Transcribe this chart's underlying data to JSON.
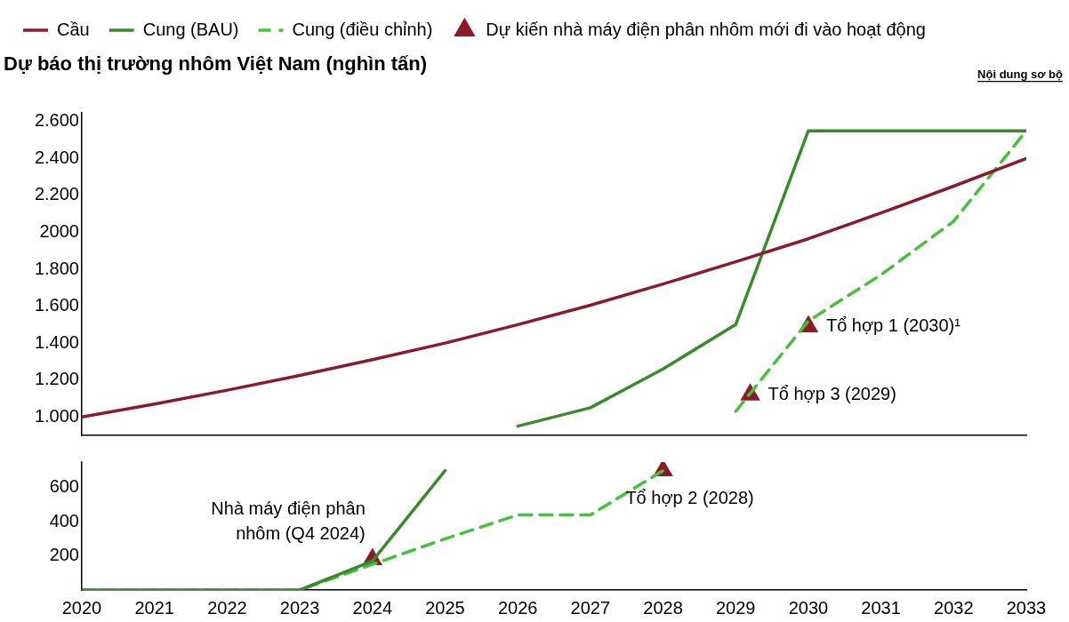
{
  "chart_data": [
    {
      "type": "line",
      "title": "Dự báo thị trường nhôm Việt Nam (nghìn tấn)",
      "annotations": [
        "Nội dung sơ bộ",
        {
          "text": "Tổ hợp 1 (2030)¹",
          "x": 2030,
          "y": 1490
        },
        {
          "text": "Tổ hợp 3 (2029)",
          "x": 2029.2,
          "y": 1120
        }
      ],
      "x": [
        2020,
        2021,
        2022,
        2023,
        2024,
        2025,
        2026,
        2027,
        2028,
        2029,
        2030,
        2031,
        2032,
        2033
      ],
      "series": [
        {
          "name": "Cầu",
          "color": "#8b1a2b",
          "line_style": "solid",
          "values": [
            1000,
            1070,
            1145,
            1225,
            1310,
            1400,
            1500,
            1605,
            1720,
            1840,
            1965,
            2105,
            2250,
            2400
          ]
        },
        {
          "name": "Cung (BAU)",
          "color": "#3a8a2e",
          "line_style": "solid",
          "values": [
            null,
            null,
            null,
            null,
            null,
            null,
            950,
            1050,
            1260,
            1500,
            2550,
            2550,
            2550,
            2550
          ]
        },
        {
          "name": "Cung (điều chỉnh)",
          "color": "#44c23a",
          "line_style": "dashed",
          "values": [
            null,
            null,
            null,
            null,
            null,
            null,
            null,
            null,
            null,
            1030,
            1520,
            1770,
            2060,
            2550
          ]
        },
        {
          "name": "Dự kiến nhà máy điện phân nhôm mới đi vào hoạt động",
          "type": "scatter",
          "marker": "triangle",
          "color": "#8b1a2b",
          "x": [
            2029.2,
            2030
          ],
          "values": [
            1120,
            1490
          ]
        }
      ],
      "xlim": [
        2020,
        2033
      ],
      "xticks": [
        2020,
        2021,
        2022,
        2023,
        2024,
        2025,
        2026,
        2027,
        2028,
        2029,
        2030,
        2031,
        2032,
        2033
      ],
      "ylim": [
        900,
        2650
      ],
      "yticks": [
        {
          "value": 1000,
          "label": "1.000"
        },
        {
          "value": 1200,
          "label": "1.200"
        },
        {
          "value": 1400,
          "label": "1.400"
        },
        {
          "value": 1600,
          "label": "1.600"
        },
        {
          "value": 1800,
          "label": "1.800"
        },
        2000,
        {
          "value": 2200,
          "label": "2.200"
        },
        {
          "value": 2400,
          "label": "2.400"
        },
        {
          "value": 2600,
          "label": "2.600"
        }
      ],
      "tick_labels": "y",
      "legend": "top left",
      "grid": false
    },
    {
      "type": "line",
      "annotations": [
        {
          "text": "Nhà máy điện phân\nnhôm (Q4 2024)",
          "x": 2024,
          "y": 180
        },
        {
          "text": "Tổ hợp 2 (2028)",
          "x": 2028,
          "y": 700
        }
      ],
      "x": [
        2020,
        2021,
        2022,
        2023,
        2024,
        2025,
        2026,
        2027,
        2028
      ],
      "series": [
        {
          "color": "#3a8a2e",
          "line_style": "solid",
          "values": [
            0,
            0,
            0,
            0,
            170,
            700,
            null,
            null,
            null
          ]
        },
        {
          "color": "#44c23a",
          "line_style": "dashed",
          "values": [
            0,
            0,
            0,
            0,
            150,
            300,
            440,
            440,
            700
          ]
        },
        {
          "type": "scatter",
          "marker": "triangle",
          "color": "#8b1a2b",
          "x": [
            2024,
            2028
          ],
          "values": [
            180,
            700
          ]
        }
      ],
      "xlim": [
        2020,
        2033
      ],
      "xticks": [
        2020,
        2021,
        2022,
        2023,
        2024,
        2025,
        2026,
        2027,
        2028,
        2029,
        2030,
        2031,
        2032,
        2033
      ],
      "ylim": [
        0,
        750
      ],
      "yticks": [
        200,
        400,
        600
      ],
      "legend": false,
      "grid": false
    }
  ]
}
